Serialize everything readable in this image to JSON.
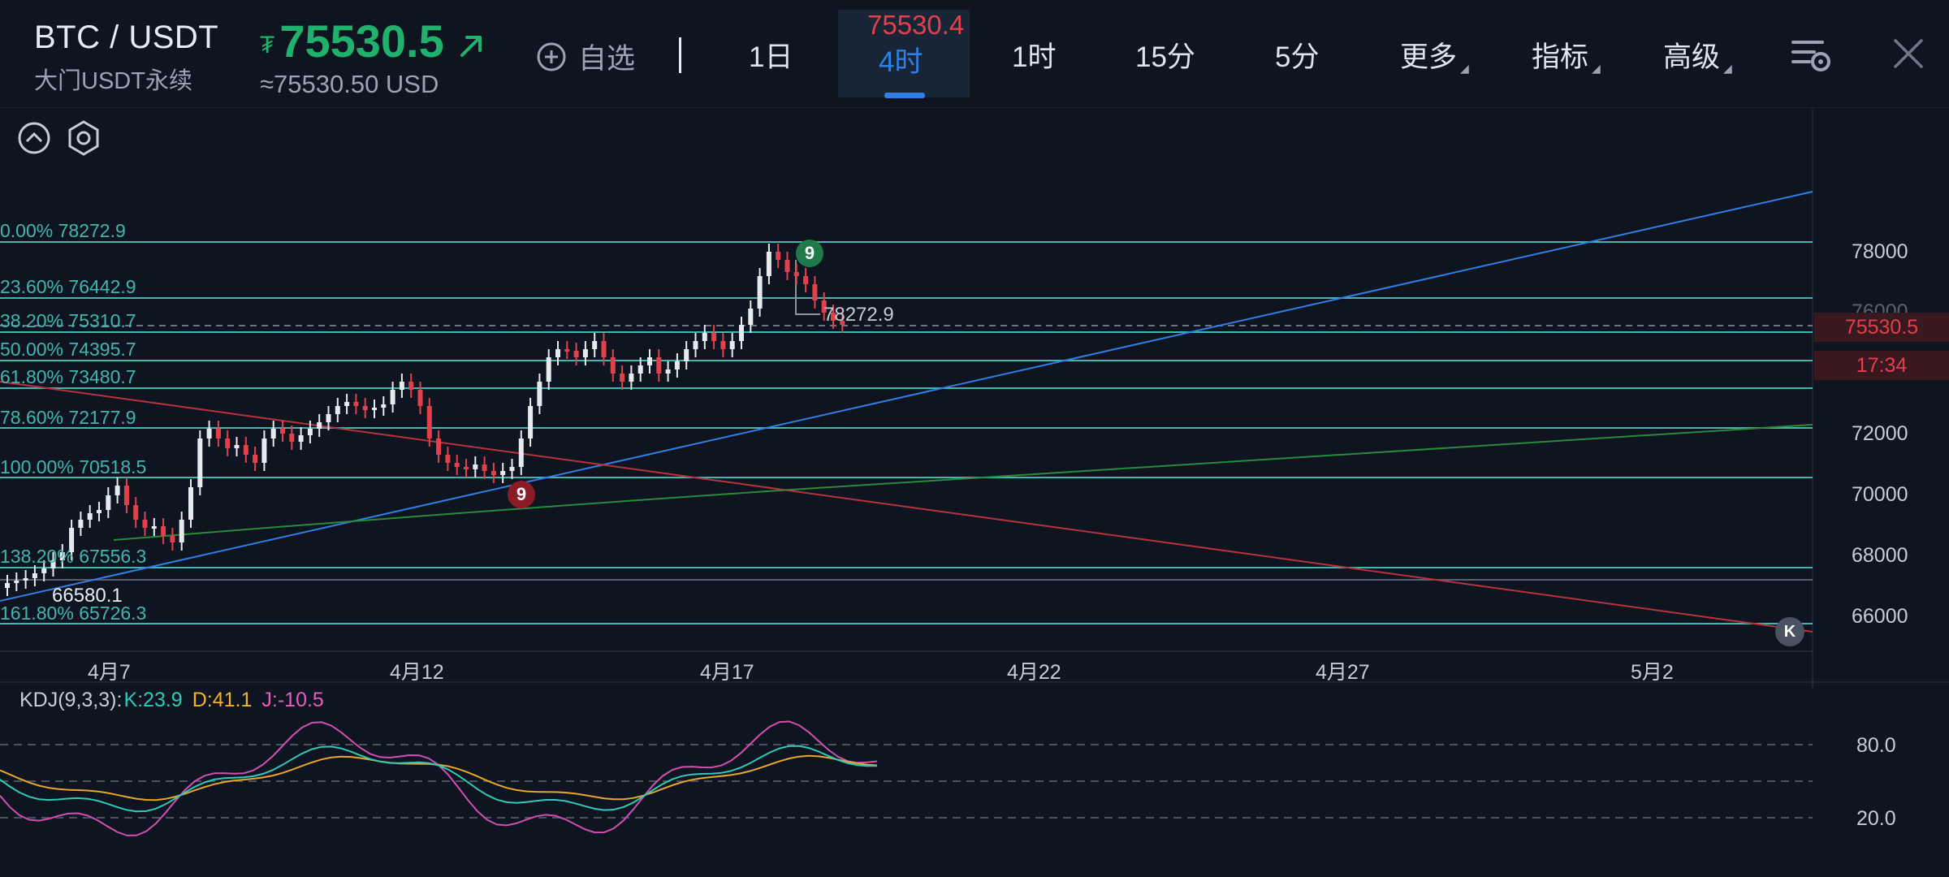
{
  "header": {
    "pair": "BTC / USDT",
    "subtitle": "大门USDT永续",
    "currency_symbol": "₮",
    "last_price": "75530.5",
    "usd_equiv": "≈75530.50 USD",
    "favorite_label": "自选",
    "tabs": [
      "1日",
      "4时",
      "1时",
      "15分",
      "5分"
    ],
    "active_tab_price": "75530.4",
    "more_label": "更多",
    "indicator_label": "指标",
    "advanced_label": "高级"
  },
  "chart": {
    "fib_labels": [
      "0.00% 78272.9",
      "23.60% 76442.9",
      "38.20% 75310.7",
      "50.00% 74395.7",
      "61.80% 73480.7",
      "78.60% 72177.9",
      "100.00% 70518.5",
      "138.20% 67556.3",
      "161.80% 65726.3"
    ],
    "y_ticks": [
      "78000",
      "76000",
      "72000",
      "70000",
      "68000",
      "66000"
    ],
    "x_ticks": [
      "4月7",
      "4月12",
      "4月17",
      "4月22",
      "4月27",
      "5月2"
    ],
    "price_tag": "75530.5",
    "time_tag": "17:34",
    "high_label": "78272.9",
    "low_label": "66580.1",
    "td_top": "9",
    "td_bottom": "9",
    "back_label": "K"
  },
  "kdj": {
    "name": "KDJ(9,3,3):",
    "k": "K:23.9",
    "d": "D:41.1",
    "j": "J:-10.5",
    "y_ticks": [
      "80.0",
      "20.0"
    ]
  },
  "colors": {
    "up": "#20b26c",
    "down": "#e0414b",
    "fib": "#3fb7b0",
    "accent": "#2f7fe4"
  }
}
